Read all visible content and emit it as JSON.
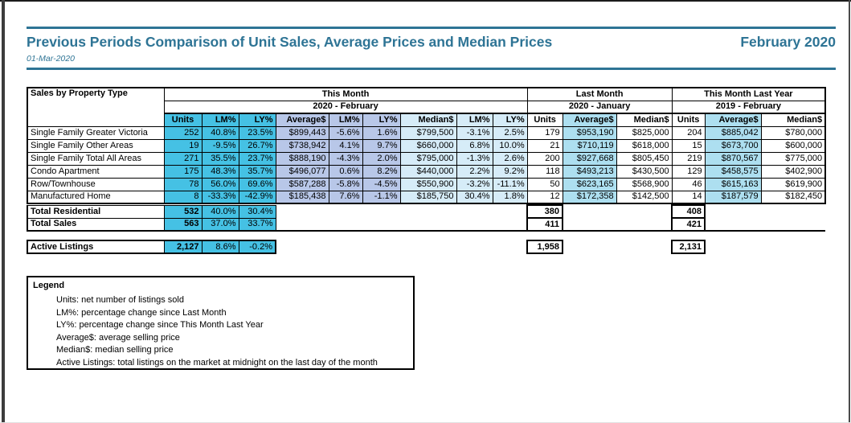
{
  "header": {
    "title": "Previous Periods Comparison of Unit Sales, Average Prices and Median Prices",
    "period": "February 2020",
    "date": "01-Mar-2020"
  },
  "colors": {
    "accent_teal": "#2e7495",
    "cyan": "#45c1e4",
    "periwinkle": "#b8c7e8",
    "light_blue": "#d6ecf8",
    "pale_cyan": "#addff0"
  },
  "table": {
    "corner_label": "Sales by Property Type",
    "sections": [
      {
        "label": "This Month",
        "sub": "2020 - February"
      },
      {
        "label": "Last Month",
        "sub": "2020 - January"
      },
      {
        "label": "This Month Last Year",
        "sub": "2019 - February"
      }
    ],
    "columns": [
      "Units",
      "LM%",
      "LY%",
      "Average$",
      "LM%",
      "LY%",
      "Median$",
      "LM%",
      "LY%",
      "Units",
      "Average$",
      "Median$",
      "Units",
      "Average$",
      "Median$"
    ],
    "rows": [
      {
        "label": "Single Family Greater Victoria",
        "values": [
          "252",
          "40.8%",
          "23.5%",
          "$899,443",
          "-5.6%",
          "1.6%",
          "$799,500",
          "-3.1%",
          "2.5%",
          "179",
          "$953,190",
          "$825,000",
          "204",
          "$885,042",
          "$780,000"
        ]
      },
      {
        "label": "Single Family Other Areas",
        "values": [
          "19",
          "-9.5%",
          "26.7%",
          "$738,942",
          "4.1%",
          "9.7%",
          "$660,000",
          "6.8%",
          "10.0%",
          "21",
          "$710,119",
          "$618,000",
          "15",
          "$673,700",
          "$600,000"
        ]
      },
      {
        "label": "Single Family Total All Areas",
        "values": [
          "271",
          "35.5%",
          "23.7%",
          "$888,190",
          "-4.3%",
          "2.0%",
          "$795,000",
          "-1.3%",
          "2.6%",
          "200",
          "$927,668",
          "$805,450",
          "219",
          "$870,567",
          "$775,000"
        ]
      },
      {
        "label": "Condo Apartment",
        "values": [
          "175",
          "48.3%",
          "35.7%",
          "$496,077",
          "0.6%",
          "8.2%",
          "$440,000",
          "2.2%",
          "9.2%",
          "118",
          "$493,213",
          "$430,500",
          "129",
          "$458,575",
          "$402,900"
        ]
      },
      {
        "label": "Row/Townhouse",
        "values": [
          "78",
          "56.0%",
          "69.6%",
          "$587,288",
          "-5.8%",
          "-4.5%",
          "$550,900",
          "-3.2%",
          "-11.1%",
          "50",
          "$623,165",
          "$568,900",
          "46",
          "$615,163",
          "$619,900"
        ]
      },
      {
        "label": "Manufactured Home",
        "values": [
          "8",
          "-33.3%",
          "-42.9%",
          "$185,438",
          "7.6%",
          "-1.1%",
          "$185,750",
          "30.4%",
          "1.8%",
          "12",
          "$172,358",
          "$142,500",
          "14",
          "$187,579",
          "$182,450"
        ]
      }
    ],
    "totals": [
      {
        "label": "Total Residential",
        "units": "532",
        "lm_pct": "40.0%",
        "ly_pct": "30.4%",
        "last_month_units": "380",
        "this_month_last_year_units": "408"
      },
      {
        "label": "Total Sales",
        "units": "563",
        "lm_pct": "37.0%",
        "ly_pct": "33.7%",
        "last_month_units": "411",
        "this_month_last_year_units": "421"
      }
    ],
    "active_listings": {
      "label": "Active Listings",
      "units": "2,127",
      "lm_pct": "8.6%",
      "ly_pct": "-0.2%",
      "last_month_units": "1,958",
      "this_month_last_year_units": "2,131"
    }
  },
  "legend": {
    "title": "Legend",
    "items": [
      "Units: net number of listings sold",
      "LM%: percentage change since Last Month",
      "LY%: percentage change since This Month Last Year",
      "Average$: average selling price",
      "Median$: median selling price",
      "Active Listings: total listings on the market at midnight on the last day of the month"
    ]
  }
}
